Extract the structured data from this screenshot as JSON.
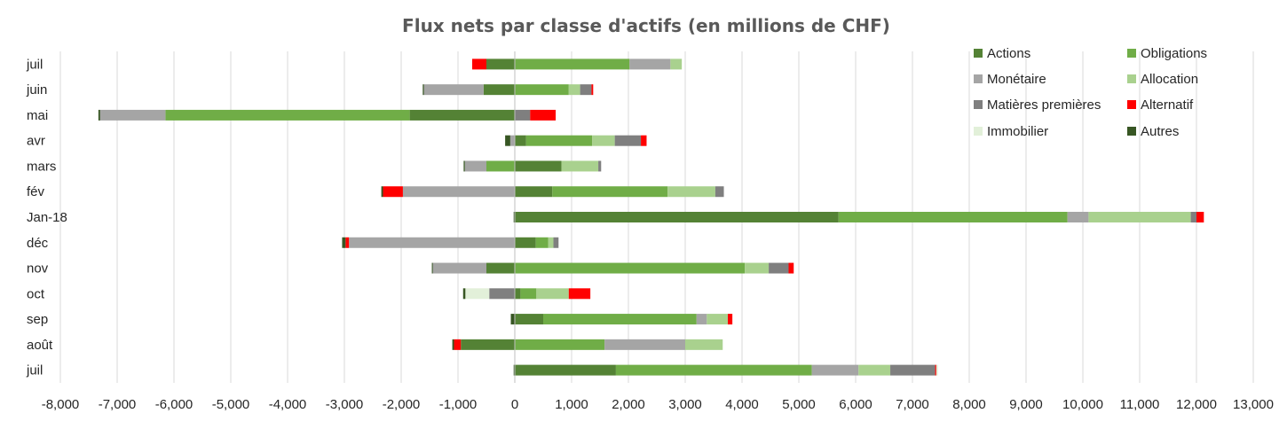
{
  "chart_data": {
    "type": "bar",
    "orientation": "horizontal",
    "stacked": true,
    "title": "Flux nets par classe d'actifs (en millions de CHF)",
    "xlabel": "",
    "ylabel": "",
    "xlim": [
      -8000,
      13000
    ],
    "x_ticks": [
      -8000,
      -7000,
      -6000,
      -5000,
      -4000,
      -3000,
      -2000,
      -1000,
      0,
      1000,
      2000,
      3000,
      4000,
      5000,
      6000,
      7000,
      8000,
      9000,
      10000,
      11000,
      12000,
      13000
    ],
    "x_tick_labels": [
      "-8,000",
      "-7,000",
      "-6,000",
      "-5,000",
      "-4,000",
      "-3,000",
      "-2,000",
      "-1,000",
      "0",
      "1,000",
      "2,000",
      "3,000",
      "4,000",
      "5,000",
      "6,000",
      "7,000",
      "8,000",
      "9,000",
      "10,000",
      "11,000",
      "12,000",
      "13,000"
    ],
    "grid": "vertical",
    "legend_position": "top-right",
    "categories": [
      "juil",
      "juin",
      "mai",
      "avr",
      "mars",
      "fév",
      "Jan-18",
      "déc",
      "nov",
      "oct",
      "sep",
      "août",
      "juil"
    ],
    "series": [
      {
        "name": "Actions",
        "color": "#548235",
        "values": [
          -500,
          -550,
          -1850,
          200,
          820,
          660,
          5700,
          370,
          -500,
          100,
          500,
          -950,
          1780
        ]
      },
      {
        "name": "Obligations",
        "color": "#70ad47",
        "values": [
          2020,
          950,
          -4300,
          1160,
          -500,
          2030,
          4030,
          220,
          4050,
          280,
          2700,
          1580,
          3450
        ]
      },
      {
        "name": "Monétaire",
        "color": "#a5a5a5",
        "values": [
          720,
          -1050,
          -1150,
          -80,
          -380,
          -1970,
          370,
          -2920,
          -950,
          0,
          180,
          1420,
          820
        ]
      },
      {
        "name": "Allocation",
        "color": "#a9d18e",
        "values": [
          200,
          200,
          0,
          400,
          650,
          840,
          1800,
          90,
          420,
          570,
          370,
          660,
          560
        ]
      },
      {
        "name": "Matières premières",
        "color": "#7f7f7f",
        "values": [
          0,
          200,
          270,
          460,
          50,
          150,
          100,
          90,
          350,
          -450,
          0,
          0,
          790
        ]
      },
      {
        "name": "Alternatif",
        "color": "#ff0000",
        "values": [
          -250,
          30,
          450,
          100,
          0,
          -350,
          130,
          -60,
          90,
          380,
          80,
          -120,
          20
        ]
      },
      {
        "name": "Immobilier",
        "color": "#e2f0d9",
        "values": [
          0,
          0,
          0,
          0,
          0,
          0,
          0,
          0,
          0,
          -420,
          0,
          0,
          30
        ]
      },
      {
        "name": "Autres",
        "color": "#375623",
        "values": [
          0,
          -20,
          -30,
          -90,
          -20,
          -30,
          -20,
          -60,
          -10,
          -40,
          -70,
          -30,
          -20
        ]
      }
    ]
  }
}
